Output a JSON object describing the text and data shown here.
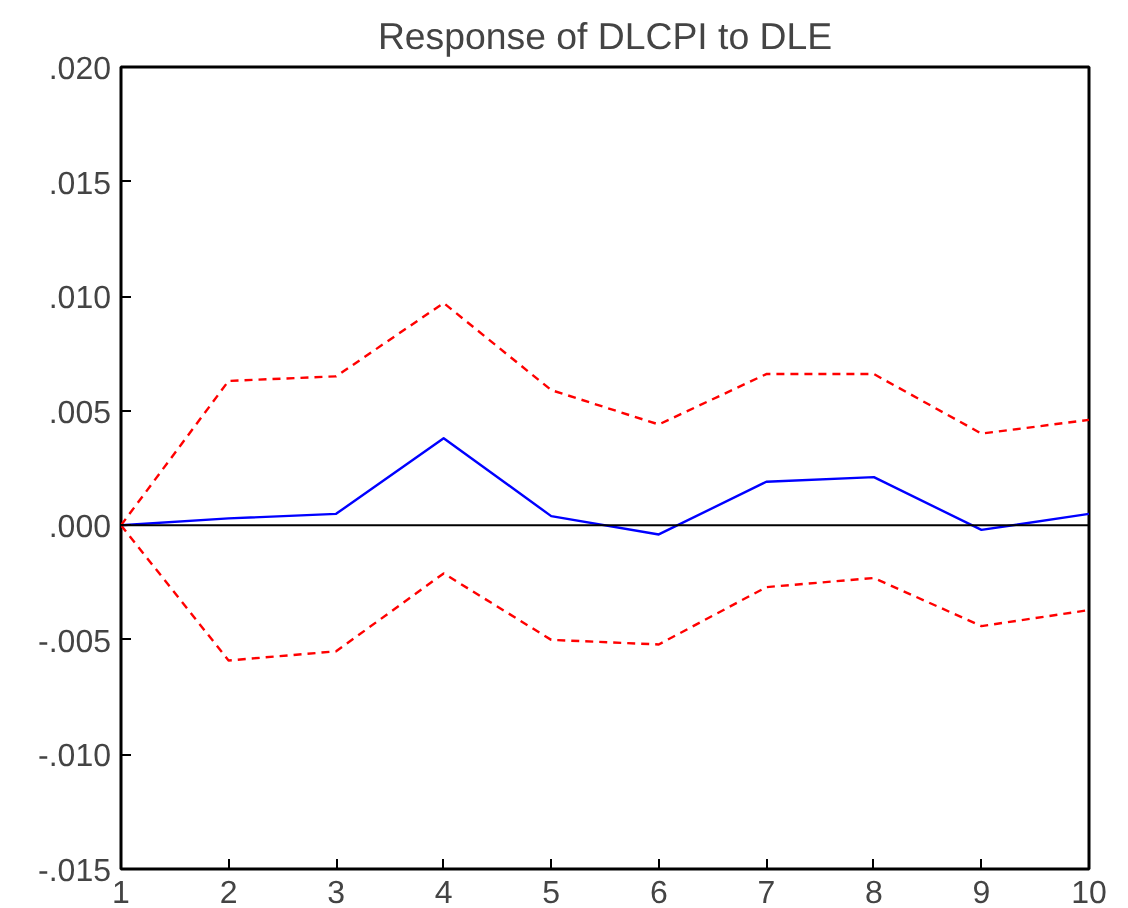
{
  "chart_data": {
    "type": "line",
    "title": "Response of DLCPI to DLE",
    "x": [
      1,
      2,
      3,
      4,
      5,
      6,
      7,
      8,
      9,
      10
    ],
    "series": [
      {
        "color": "#0000ff",
        "line_style": "solid",
        "values": [
          0,
          0.0003,
          0.0005,
          0.0038,
          0.0004,
          -0.0004,
          0.0019,
          0.0021,
          -0.0002,
          0.0005
        ]
      },
      {
        "color": "#ff0000",
        "line_style": "dashed",
        "values": [
          0,
          0.0063,
          0.0065,
          0.0097,
          0.0059,
          0.0044,
          0.0066,
          0.0066,
          0.004,
          0.0046
        ]
      },
      {
        "color": "#ff0000",
        "line_style": "dashed",
        "values": [
          0,
          -0.0059,
          -0.0055,
          -0.0021,
          -0.005,
          -0.0052,
          -0.0027,
          -0.0023,
          -0.0044,
          -0.0037
        ]
      }
    ],
    "xlim": [
      1,
      10
    ],
    "xticks": [
      1,
      2,
      3,
      4,
      5,
      6,
      7,
      8,
      9,
      10
    ],
    "ylim": [
      -0.015,
      0.02
    ],
    "yticks": [
      {
        "value": -0.015,
        "label": "-.015"
      },
      {
        "value": -0.01,
        "label": "-.010"
      },
      {
        "value": -0.005,
        "label": "-.005"
      },
      {
        "value": 0,
        "label": ".000"
      },
      {
        "value": 0.005,
        "label": ".005"
      },
      {
        "value": 0.01,
        "label": ".010"
      },
      {
        "value": 0.015,
        "label": ".015"
      },
      {
        "value": 0.02,
        "label": ".020"
      }
    ],
    "ref_lines": [
      {
        "axis": "y",
        "value": 0,
        "color": "#000000"
      }
    ],
    "grid": false,
    "marker": "none"
  }
}
